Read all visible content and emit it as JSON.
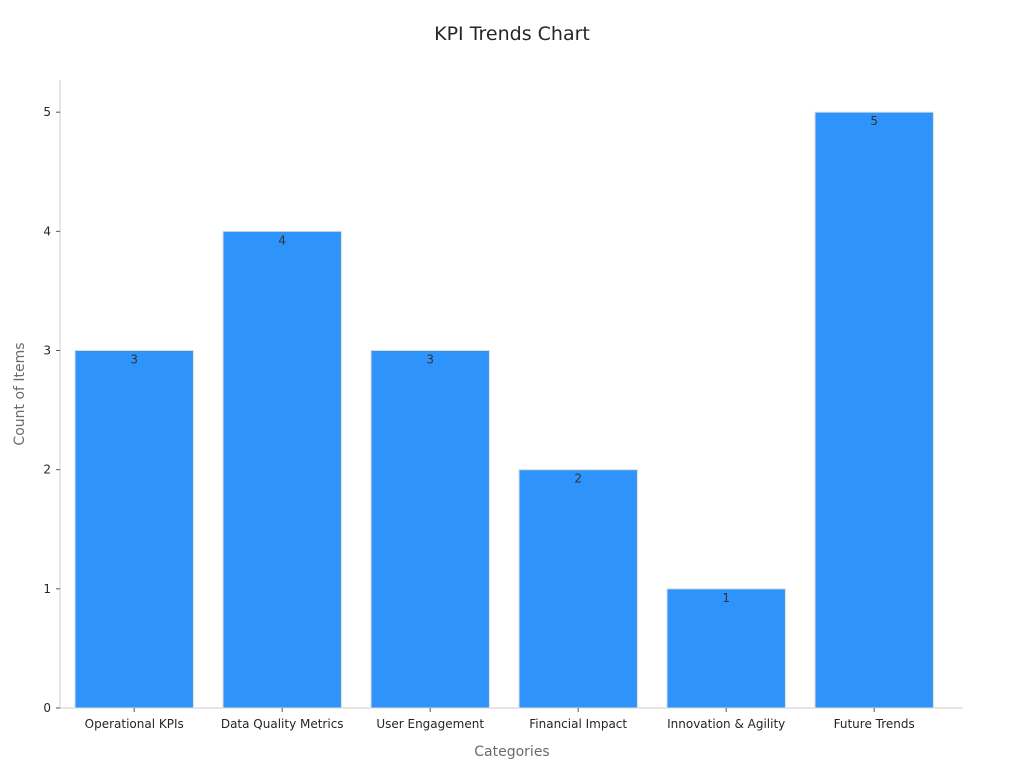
{
  "chart_data": {
    "type": "bar",
    "title": "KPI Trends Chart",
    "xlabel": "Categories",
    "ylabel": "Count of Items",
    "categories": [
      "Operational KPIs",
      "Data Quality Metrics",
      "User Engagement",
      "Financial Impact",
      "Innovation & Agility",
      "Future Trends"
    ],
    "values": [
      3,
      4,
      3,
      2,
      1,
      5
    ],
    "data_labels": [
      "3",
      "4",
      "3",
      "2",
      "1",
      "5"
    ],
    "yticks": [
      0,
      1,
      2,
      3,
      4,
      5
    ],
    "ylim": [
      0,
      5.27
    ],
    "grid": false,
    "legend": "none",
    "colors": {
      "bar": "#2e93fa",
      "bar_edge": "#dddddd"
    }
  }
}
